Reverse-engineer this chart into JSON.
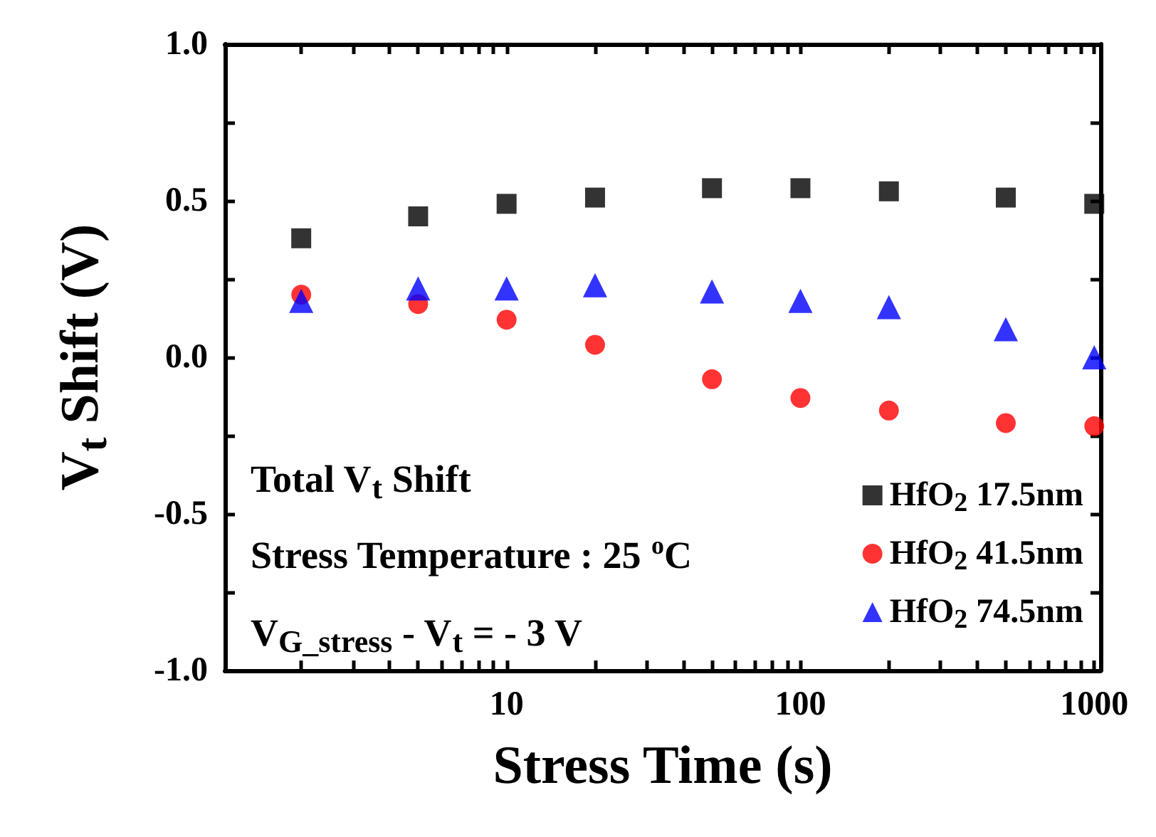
{
  "chart_data": {
    "type": "scatter",
    "xlabel": "Stress Time (s)",
    "ylabel": "V$_{t}$ Shift (V)",
    "x": [
      2,
      5,
      10,
      20,
      50,
      100,
      200,
      500,
      1000
    ],
    "series": [
      {
        "name": "HfO$_{2}$ 17.5nm",
        "color": "#000000",
        "marker": "square",
        "values": [
          0.38,
          0.45,
          0.49,
          0.51,
          0.54,
          0.54,
          0.53,
          0.51,
          0.49
        ]
      },
      {
        "name": "HfO$_{2}$ 41.5nm",
        "color": "#ff0000",
        "marker": "circle",
        "values": [
          0.2,
          0.17,
          0.12,
          0.04,
          -0.07,
          -0.13,
          -0.17,
          -0.21,
          -0.22
        ]
      },
      {
        "name": "HfO$_{2}$ 74.5nm",
        "color": "#0000ff",
        "marker": "triangle",
        "values": [
          0.18,
          0.22,
          0.22,
          0.23,
          0.21,
          0.18,
          0.16,
          0.09,
          0.0
        ]
      }
    ],
    "log": "x",
    "xlim": [
      1.1,
      1050
    ],
    "xticks": [
      {
        "value": 2,
        "label": null
      },
      {
        "value": 3,
        "label": null
      },
      {
        "value": 4,
        "label": null
      },
      {
        "value": 5,
        "label": null
      },
      {
        "value": 6,
        "label": null
      },
      {
        "value": 7,
        "label": null
      },
      {
        "value": 8,
        "label": null
      },
      {
        "value": 9,
        "label": null
      },
      10,
      {
        "value": 20,
        "label": null
      },
      {
        "value": 30,
        "label": null
      },
      {
        "value": 40,
        "label": null
      },
      {
        "value": 50,
        "label": null
      },
      {
        "value": 60,
        "label": null
      },
      {
        "value": 70,
        "label": null
      },
      {
        "value": 80,
        "label": null
      },
      {
        "value": 90,
        "label": null
      },
      100,
      {
        "value": 200,
        "label": null
      },
      {
        "value": 300,
        "label": null
      },
      {
        "value": 400,
        "label": null
      },
      {
        "value": 500,
        "label": null
      },
      {
        "value": 600,
        "label": null
      },
      {
        "value": 700,
        "label": null
      },
      {
        "value": 800,
        "label": null
      },
      {
        "value": 900,
        "label": null
      },
      1000
    ],
    "ylim": [
      -1.0,
      1.0
    ],
    "yticks": [
      {
        "value": -1,
        "label": "-1.0"
      },
      {
        "value": -0.75,
        "label": null
      },
      {
        "value": -0.5,
        "label": "-0.5"
      },
      {
        "value": -0.25,
        "label": null
      },
      {
        "value": 0,
        "label": "0.0"
      },
      {
        "value": 0.25,
        "label": null
      },
      {
        "value": 0.5,
        "label": "0.5"
      },
      {
        "value": 0.75,
        "label": null
      },
      {
        "value": 1,
        "label": "1.0"
      }
    ],
    "grid": false,
    "legend": "bottom right",
    "annotations": [
      "Total V$_{t}$ Shift",
      "Stress Temperature : 25 $^{o}$C",
      "V$_{G_stress}$ - V$_{t}$ = - 3 V"
    ]
  }
}
